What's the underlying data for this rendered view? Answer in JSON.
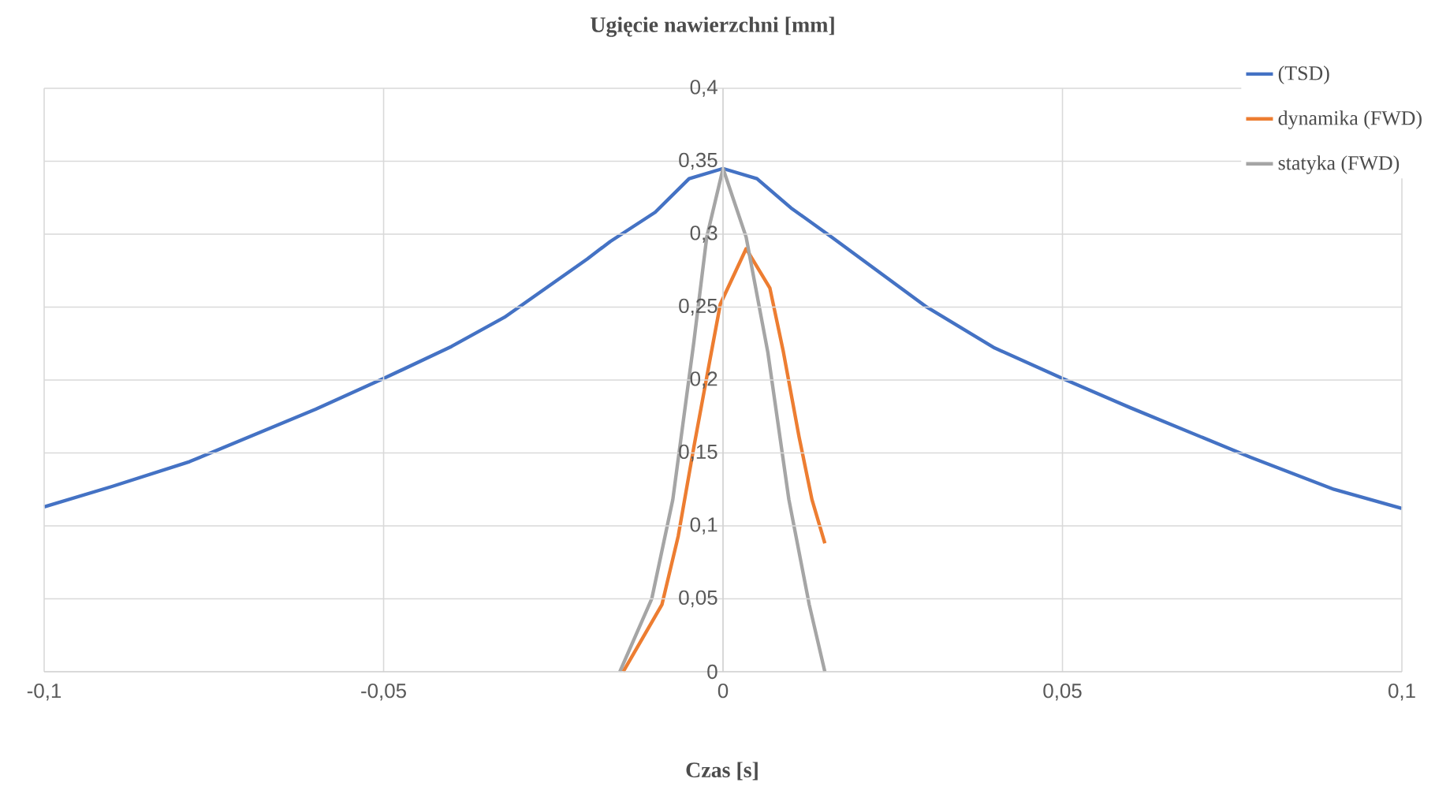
{
  "chart_data": {
    "type": "line",
    "title": "Ugięcie nawierzchni [mm]",
    "xlabel": "Czas [s]",
    "xlim": [
      -0.1,
      0.1
    ],
    "ylim": [
      0,
      0.4
    ],
    "xticks": [
      {
        "value": -0.1,
        "label": "-0,1"
      },
      {
        "value": -0.05,
        "label": "-0,05"
      },
      {
        "value": 0,
        "label": "0"
      },
      {
        "value": 0.05,
        "label": "0,05"
      },
      {
        "value": 0.1,
        "label": "0,1"
      }
    ],
    "yticks": [
      {
        "value": 0,
        "label": "0"
      },
      {
        "value": 0.05,
        "label": "0,05"
      },
      {
        "value": 0.1,
        "label": "0,1"
      },
      {
        "value": 0.15,
        "label": "0,15"
      },
      {
        "value": 0.2,
        "label": "0,2"
      },
      {
        "value": 0.25,
        "label": "0,25"
      },
      {
        "value": 0.3,
        "label": "0,3"
      },
      {
        "value": 0.35,
        "label": "0,35"
      },
      {
        "value": 0.4,
        "label": "0,4"
      }
    ],
    "grid": true,
    "legend": "top right",
    "marker": "none",
    "line_style": "solid",
    "series": [
      {
        "name": "(TSD)",
        "color": "#4472c4",
        "x": [
          -0.1,
          -0.09,
          -0.0786,
          -0.06,
          -0.05,
          -0.04,
          -0.0322,
          -0.02,
          -0.0166,
          -0.01,
          -0.005,
          0,
          0.005,
          0.01,
          0.016,
          0.03,
          0.04,
          0.05,
          0.06,
          0.0777,
          0.09,
          0.1
        ],
        "values": [
          0.113,
          0.127,
          0.144,
          0.18,
          0.201,
          0.223,
          0.243,
          0.283,
          0.295,
          0.315,
          0.338,
          0.345,
          0.338,
          0.318,
          0.298,
          0.25,
          0.222,
          0.201,
          0.181,
          0.147,
          0.125,
          0.112
        ]
      },
      {
        "name": "dynamika (FWD)",
        "color": "#ed7d31",
        "x": [
          -0.0147,
          -0.009,
          -0.0066,
          -0.0043,
          -0.002,
          -0.0004,
          0.0034,
          0.0069,
          0.0089,
          0.0112,
          0.0131,
          0.015
        ],
        "values": [
          0,
          0.046,
          0.093,
          0.154,
          0.212,
          0.252,
          0.29,
          0.263,
          0.219,
          0.161,
          0.118,
          0.088
        ]
      },
      {
        "name": "statyka (FWD)",
        "color": "#a5a5a5",
        "x": [
          -0.0152,
          -0.0105,
          -0.0074,
          -0.0043,
          -0.0024,
          0,
          0.0034,
          0.0066,
          0.0097,
          0.0127,
          0.015
        ],
        "values": [
          0,
          0.05,
          0.118,
          0.226,
          0.298,
          0.345,
          0.298,
          0.219,
          0.118,
          0.046,
          0
        ]
      }
    ]
  }
}
